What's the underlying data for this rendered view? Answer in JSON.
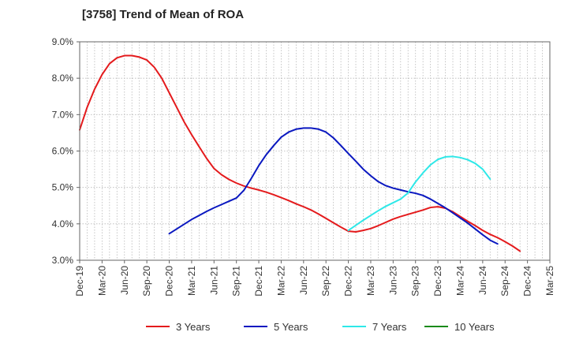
{
  "chart_data": {
    "type": "line",
    "title": "[3758]  Trend of Mean of ROA",
    "xlabel": "",
    "ylabel": "",
    "x_ticks": [
      "Dec-19",
      "Mar-20",
      "Jun-20",
      "Sep-20",
      "Dec-20",
      "Mar-21",
      "Jun-21",
      "Sep-21",
      "Dec-21",
      "Mar-22",
      "Jun-22",
      "Sep-22",
      "Dec-22",
      "Mar-23",
      "Jun-23",
      "Sep-23",
      "Dec-23",
      "Mar-24",
      "Jun-24",
      "Sep-24",
      "Dec-24",
      "Mar-25"
    ],
    "y_ticks": [
      3.0,
      4.0,
      5.0,
      6.0,
      7.0,
      8.0,
      9.0
    ],
    "y_tick_labels": [
      "3.0%",
      "4.0%",
      "5.0%",
      "6.0%",
      "7.0%",
      "8.0%",
      "9.0%"
    ],
    "ylim": [
      3.0,
      9.0
    ],
    "grid": true,
    "legend_position": "bottom",
    "series": [
      {
        "name": "3 Years",
        "color": "#e41a1c",
        "start_month_index": 0,
        "values": [
          6.58,
          7.2,
          7.7,
          8.1,
          8.4,
          8.56,
          8.62,
          8.62,
          8.58,
          8.5,
          8.3,
          8.0,
          7.6,
          7.2,
          6.8,
          6.45,
          6.12,
          5.8,
          5.52,
          5.35,
          5.22,
          5.12,
          5.04,
          4.98,
          4.93,
          4.87,
          4.8,
          4.72,
          4.64,
          4.55,
          4.47,
          4.38,
          4.27,
          4.15,
          4.03,
          3.91,
          3.8,
          3.78,
          3.82,
          3.87,
          3.95,
          4.04,
          4.13,
          4.2,
          4.26,
          4.32,
          4.38,
          4.45,
          4.47,
          4.43,
          4.33,
          4.2,
          4.07,
          3.95,
          3.82,
          3.71,
          3.62,
          3.51,
          3.39,
          3.25
        ]
      },
      {
        "name": "5 Years",
        "color": "#0a18c0",
        "start_month_index": 12,
        "values": [
          3.73,
          3.86,
          3.99,
          4.12,
          4.23,
          4.34,
          4.44,
          4.53,
          4.62,
          4.71,
          4.92,
          5.25,
          5.6,
          5.9,
          6.15,
          6.38,
          6.52,
          6.6,
          6.63,
          6.63,
          6.6,
          6.52,
          6.36,
          6.15,
          5.93,
          5.72,
          5.5,
          5.32,
          5.16,
          5.05,
          4.98,
          4.93,
          4.88,
          4.84,
          4.78,
          4.68,
          4.56,
          4.44,
          4.3,
          4.16,
          4.02,
          3.86,
          3.7,
          3.55,
          3.45
        ]
      },
      {
        "name": "7 Years",
        "color": "#2ee8e8",
        "start_month_index": 36,
        "values": [
          3.82,
          3.96,
          4.1,
          4.23,
          4.36,
          4.48,
          4.58,
          4.68,
          4.85,
          5.15,
          5.4,
          5.62,
          5.77,
          5.84,
          5.85,
          5.82,
          5.76,
          5.66,
          5.5,
          5.23
        ]
      },
      {
        "name": "10 Years",
        "color": "#1a8a1a",
        "start_month_index": 0,
        "values": []
      }
    ]
  }
}
